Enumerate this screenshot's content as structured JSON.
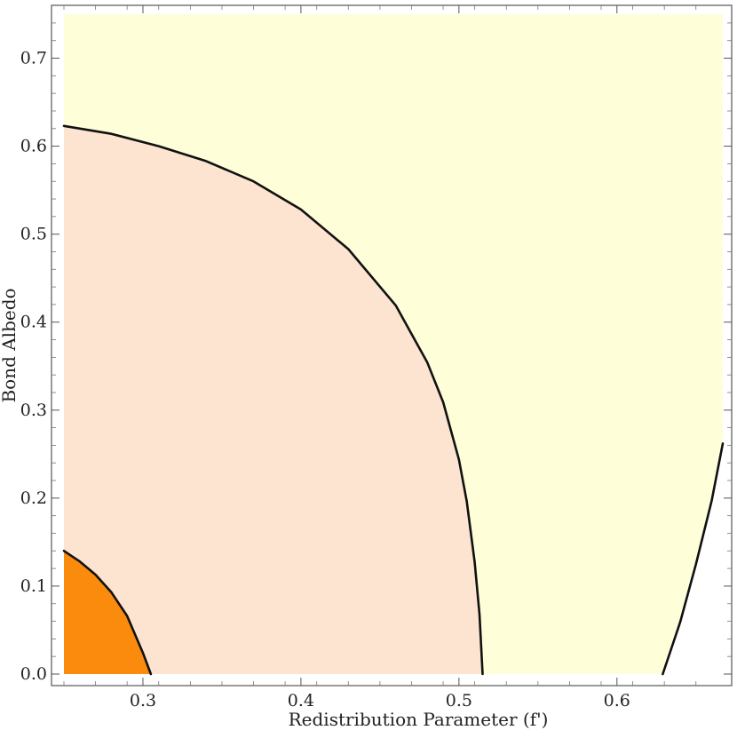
{
  "chart_data": {
    "type": "contour",
    "title": "",
    "xlabel": "Redistribution Parameter (f')",
    "ylabel": "Bond Albedo",
    "xlim": [
      0.25,
      0.667
    ],
    "ylim": [
      0.0,
      0.75
    ],
    "x_ticks": [
      0.3,
      0.4,
      0.5,
      0.6
    ],
    "x_tick_labels": [
      "0.3",
      "0.4",
      "0.5",
      "0.6"
    ],
    "y_ticks": [
      0.0,
      0.1,
      0.2,
      0.3,
      0.4,
      0.5,
      0.6,
      0.7
    ],
    "y_tick_labels": [
      "0.0",
      "0.1",
      "0.2",
      "0.3",
      "0.4",
      "0.5",
      "0.6",
      "0.7"
    ],
    "grid": false,
    "colors": {
      "background_region": "#ffffff",
      "outer_region": "#fefed9",
      "middle_region": "#fce4d1",
      "inner_region": "#fb8b0c",
      "contour_line": "#111111"
    },
    "contours": [
      {
        "id": "inner",
        "points": [
          [
            0.25,
            0.14
          ],
          [
            0.26,
            0.128
          ],
          [
            0.27,
            0.113
          ],
          [
            0.28,
            0.093
          ],
          [
            0.29,
            0.066
          ],
          [
            0.3,
            0.024
          ],
          [
            0.305,
            0.0
          ]
        ]
      },
      {
        "id": "middle",
        "points": [
          [
            0.25,
            0.623
          ],
          [
            0.28,
            0.614
          ],
          [
            0.31,
            0.6
          ],
          [
            0.34,
            0.583
          ],
          [
            0.37,
            0.56
          ],
          [
            0.4,
            0.528
          ],
          [
            0.43,
            0.483
          ],
          [
            0.46,
            0.419
          ],
          [
            0.48,
            0.354
          ],
          [
            0.49,
            0.309
          ],
          [
            0.5,
            0.244
          ],
          [
            0.505,
            0.196
          ],
          [
            0.51,
            0.127
          ],
          [
            0.513,
            0.068
          ],
          [
            0.515,
            0.0
          ]
        ]
      },
      {
        "id": "outer",
        "points": [
          [
            0.629,
            0.0
          ],
          [
            0.64,
            0.059
          ],
          [
            0.65,
            0.125
          ],
          [
            0.66,
            0.197
          ],
          [
            0.667,
            0.262
          ]
        ]
      }
    ]
  }
}
